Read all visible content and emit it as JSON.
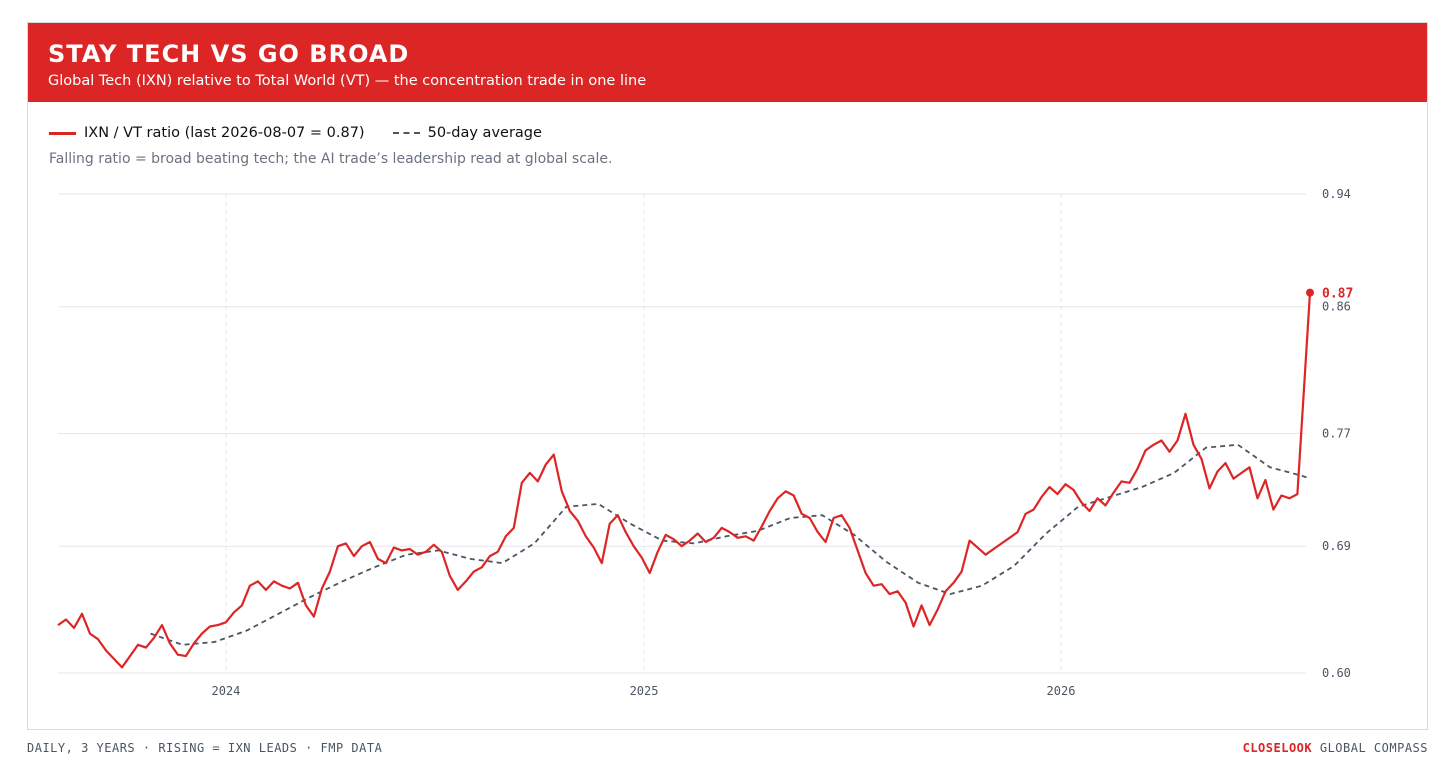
{
  "header": {
    "title": "STAY TECH VS GO BROAD",
    "subtitle": "Global Tech (IXN) relative to Total World (VT) — the concentration trade in one line"
  },
  "legend": {
    "ratio_label": "IXN / VT ratio (last 2026-08-07 = 0.87)",
    "avg_label": "50-day average"
  },
  "note": "Falling ratio = broad beating tech; the AI trade’s leadership read at global scale.",
  "footer": {
    "left": "DAILY, 3 YEARS · RISING = IXN LEADS · FMP DATA",
    "brand": "CLOSELOOK",
    "brand_suffix": " GLOBAL COMPASS"
  },
  "colors": {
    "ratio": "#dc2626",
    "average": "#4b5563",
    "grid": "#e5e7eb",
    "banner": "#dc2626"
  },
  "chart_data": {
    "type": "line",
    "x_axis": {
      "type": "date",
      "range": [
        "2023-08-07",
        "2026-08-07"
      ],
      "tick_labels": [
        "2024",
        "2025",
        "2026"
      ],
      "ticks": [
        "2024-01-01",
        "2025-01-01",
        "2026-01-01"
      ],
      "grid": "dashed"
    },
    "y_axis": {
      "range": [
        0.6,
        0.94
      ],
      "ticks": [
        0.6,
        0.69,
        0.77,
        0.86,
        0.94
      ],
      "tick_labels": [
        "0.60",
        "0.69",
        "0.77",
        "0.86",
        "0.94"
      ],
      "position": "right",
      "grid": "solid"
    },
    "last_value_label": "0.87",
    "series": [
      {
        "name": "IXN / VT ratio (last 2026-08-07 = 0.87)",
        "style": "solid",
        "points": [
          [
            "2023-08-07",
            0.634
          ],
          [
            "2023-08-14",
            0.638
          ],
          [
            "2023-08-21",
            0.632
          ],
          [
            "2023-08-28",
            0.642
          ],
          [
            "2023-09-04",
            0.628
          ],
          [
            "2023-09-11",
            0.624
          ],
          [
            "2023-09-18",
            0.616
          ],
          [
            "2023-09-25",
            0.61
          ],
          [
            "2023-10-02",
            0.604
          ],
          [
            "2023-10-09",
            0.612
          ],
          [
            "2023-10-16",
            0.62
          ],
          [
            "2023-10-23",
            0.618
          ],
          [
            "2023-10-30",
            0.625
          ],
          [
            "2023-11-06",
            0.634
          ],
          [
            "2023-11-13",
            0.621
          ],
          [
            "2023-11-20",
            0.613
          ],
          [
            "2023-11-27",
            0.612
          ],
          [
            "2023-12-04",
            0.621
          ],
          [
            "2023-12-11",
            0.628
          ],
          [
            "2023-12-18",
            0.633
          ],
          [
            "2023-12-25",
            0.634
          ],
          [
            "2024-01-01",
            0.636
          ],
          [
            "2024-01-08",
            0.643
          ],
          [
            "2024-01-15",
            0.648
          ],
          [
            "2024-01-22",
            0.662
          ],
          [
            "2024-01-29",
            0.665
          ],
          [
            "2024-02-05",
            0.659
          ],
          [
            "2024-02-12",
            0.665
          ],
          [
            "2024-02-19",
            0.662
          ],
          [
            "2024-02-26",
            0.66
          ],
          [
            "2024-03-04",
            0.664
          ],
          [
            "2024-03-11",
            0.648
          ],
          [
            "2024-03-18",
            0.64
          ],
          [
            "2024-03-25",
            0.66
          ],
          [
            "2024-04-01",
            0.672
          ],
          [
            "2024-04-08",
            0.69
          ],
          [
            "2024-04-15",
            0.692
          ],
          [
            "2024-04-22",
            0.683
          ],
          [
            "2024-04-29",
            0.69
          ],
          [
            "2024-05-06",
            0.693
          ],
          [
            "2024-05-13",
            0.681
          ],
          [
            "2024-05-20",
            0.678
          ],
          [
            "2024-05-27",
            0.689
          ],
          [
            "2024-06-03",
            0.687
          ],
          [
            "2024-06-10",
            0.688
          ],
          [
            "2024-06-17",
            0.684
          ],
          [
            "2024-06-24",
            0.686
          ],
          [
            "2024-07-01",
            0.691
          ],
          [
            "2024-07-08",
            0.686
          ],
          [
            "2024-07-15",
            0.669
          ],
          [
            "2024-07-22",
            0.659
          ],
          [
            "2024-07-29",
            0.665
          ],
          [
            "2024-08-05",
            0.672
          ],
          [
            "2024-08-12",
            0.675
          ],
          [
            "2024-08-19",
            0.683
          ],
          [
            "2024-08-26",
            0.686
          ],
          [
            "2024-09-02",
            0.697
          ],
          [
            "2024-09-09",
            0.703
          ],
          [
            "2024-09-16",
            0.735
          ],
          [
            "2024-09-23",
            0.742
          ],
          [
            "2024-09-30",
            0.736
          ],
          [
            "2024-10-07",
            0.748
          ],
          [
            "2024-10-14",
            0.755
          ],
          [
            "2024-10-21",
            0.729
          ],
          [
            "2024-10-28",
            0.715
          ],
          [
            "2024-11-04",
            0.708
          ],
          [
            "2024-11-11",
            0.697
          ],
          [
            "2024-11-18",
            0.689
          ],
          [
            "2024-11-25",
            0.678
          ],
          [
            "2024-12-02",
            0.706
          ],
          [
            "2024-12-09",
            0.712
          ],
          [
            "2024-12-16",
            0.7
          ],
          [
            "2024-12-23",
            0.69
          ],
          [
            "2024-12-30",
            0.682
          ],
          [
            "2025-01-06",
            0.671
          ],
          [
            "2025-01-13",
            0.686
          ],
          [
            "2025-01-20",
            0.698
          ],
          [
            "2025-01-27",
            0.695
          ],
          [
            "2025-02-03",
            0.69
          ],
          [
            "2025-02-10",
            0.694
          ],
          [
            "2025-02-17",
            0.699
          ],
          [
            "2025-02-24",
            0.693
          ],
          [
            "2025-03-03",
            0.696
          ],
          [
            "2025-03-10",
            0.703
          ],
          [
            "2025-03-17",
            0.7
          ],
          [
            "2025-03-24",
            0.696
          ],
          [
            "2025-03-31",
            0.697
          ],
          [
            "2025-04-07",
            0.694
          ],
          [
            "2025-04-14",
            0.704
          ],
          [
            "2025-04-21",
            0.715
          ],
          [
            "2025-04-28",
            0.724
          ],
          [
            "2025-05-05",
            0.729
          ],
          [
            "2025-05-12",
            0.726
          ],
          [
            "2025-05-19",
            0.713
          ],
          [
            "2025-05-26",
            0.71
          ],
          [
            "2025-06-02",
            0.7
          ],
          [
            "2025-06-09",
            0.693
          ],
          [
            "2025-06-16",
            0.71
          ],
          [
            "2025-06-23",
            0.712
          ],
          [
            "2025-06-30",
            0.703
          ],
          [
            "2025-07-07",
            0.687
          ],
          [
            "2025-07-14",
            0.671
          ],
          [
            "2025-07-21",
            0.662
          ],
          [
            "2025-07-28",
            0.663
          ],
          [
            "2025-08-04",
            0.656
          ],
          [
            "2025-08-11",
            0.658
          ],
          [
            "2025-08-18",
            0.65
          ],
          [
            "2025-08-25",
            0.633
          ],
          [
            "2025-09-01",
            0.648
          ],
          [
            "2025-09-08",
            0.634
          ],
          [
            "2025-09-15",
            0.645
          ],
          [
            "2025-09-22",
            0.658
          ],
          [
            "2025-09-29",
            0.664
          ],
          [
            "2025-10-06",
            0.672
          ],
          [
            "2025-10-13",
            0.694
          ],
          [
            "2025-10-20",
            0.689
          ],
          [
            "2025-10-27",
            0.684
          ],
          [
            "2025-11-03",
            0.688
          ],
          [
            "2025-11-10",
            0.692
          ],
          [
            "2025-11-17",
            0.696
          ],
          [
            "2025-11-24",
            0.7
          ],
          [
            "2025-12-01",
            0.713
          ],
          [
            "2025-12-08",
            0.716
          ],
          [
            "2025-12-15",
            0.725
          ],
          [
            "2025-12-22",
            0.732
          ],
          [
            "2025-12-29",
            0.727
          ],
          [
            "2026-01-05",
            0.734
          ],
          [
            "2026-01-12",
            0.73
          ],
          [
            "2026-01-19",
            0.721
          ],
          [
            "2026-01-26",
            0.715
          ],
          [
            "2026-02-02",
            0.724
          ],
          [
            "2026-02-09",
            0.719
          ],
          [
            "2026-02-16",
            0.728
          ],
          [
            "2026-02-23",
            0.736
          ],
          [
            "2026-03-02",
            0.735
          ],
          [
            "2026-03-09",
            0.745
          ],
          [
            "2026-03-16",
            0.758
          ],
          [
            "2026-03-23",
            0.762
          ],
          [
            "2026-03-30",
            0.765
          ],
          [
            "2026-04-06",
            0.757
          ],
          [
            "2026-04-13",
            0.765
          ],
          [
            "2026-04-20",
            0.784
          ],
          [
            "2026-04-27",
            0.762
          ],
          [
            "2026-05-04",
            0.752
          ],
          [
            "2026-05-11",
            0.731
          ],
          [
            "2026-05-18",
            0.743
          ],
          [
            "2026-05-25",
            0.749
          ],
          [
            "2026-06-01",
            0.738
          ],
          [
            "2026-06-08",
            0.742
          ],
          [
            "2026-06-15",
            0.746
          ],
          [
            "2026-06-22",
            0.724
          ],
          [
            "2026-06-29",
            0.737
          ],
          [
            "2026-07-06",
            0.716
          ],
          [
            "2026-07-13",
            0.726
          ],
          [
            "2026-07-20",
            0.724
          ],
          [
            "2026-07-27",
            0.727
          ],
          [
            "2026-08-07",
            0.87
          ]
        ]
      },
      {
        "name": "50-day average",
        "style": "dashed",
        "points": [
          [
            "2023-10-27",
            0.628
          ],
          [
            "2023-11-24",
            0.62
          ],
          [
            "2023-12-22",
            0.622
          ],
          [
            "2024-01-19",
            0.63
          ],
          [
            "2024-02-16",
            0.642
          ],
          [
            "2024-03-15",
            0.654
          ],
          [
            "2024-04-12",
            0.665
          ],
          [
            "2024-05-10",
            0.675
          ],
          [
            "2024-06-07",
            0.684
          ],
          [
            "2024-07-05",
            0.687
          ],
          [
            "2024-08-02",
            0.681
          ],
          [
            "2024-08-30",
            0.678
          ],
          [
            "2024-09-27",
            0.692
          ],
          [
            "2024-10-25",
            0.718
          ],
          [
            "2024-11-22",
            0.72
          ],
          [
            "2024-12-20",
            0.706
          ],
          [
            "2025-01-17",
            0.694
          ],
          [
            "2025-02-14",
            0.692
          ],
          [
            "2025-03-14",
            0.697
          ],
          [
            "2025-04-11",
            0.701
          ],
          [
            "2025-05-09",
            0.71
          ],
          [
            "2025-06-06",
            0.712
          ],
          [
            "2025-07-04",
            0.698
          ],
          [
            "2025-08-01",
            0.679
          ],
          [
            "2025-08-29",
            0.664
          ],
          [
            "2025-09-26",
            0.656
          ],
          [
            "2025-10-24",
            0.662
          ],
          [
            "2025-11-21",
            0.676
          ],
          [
            "2025-12-19",
            0.699
          ],
          [
            "2026-01-16",
            0.718
          ],
          [
            "2026-02-13",
            0.725
          ],
          [
            "2026-03-13",
            0.732
          ],
          [
            "2026-04-10",
            0.742
          ],
          [
            "2026-05-08",
            0.76
          ],
          [
            "2026-06-05",
            0.762
          ],
          [
            "2026-07-03",
            0.746
          ],
          [
            "2026-07-31",
            0.74
          ],
          [
            "2026-08-07",
            0.738
          ]
        ]
      }
    ]
  }
}
